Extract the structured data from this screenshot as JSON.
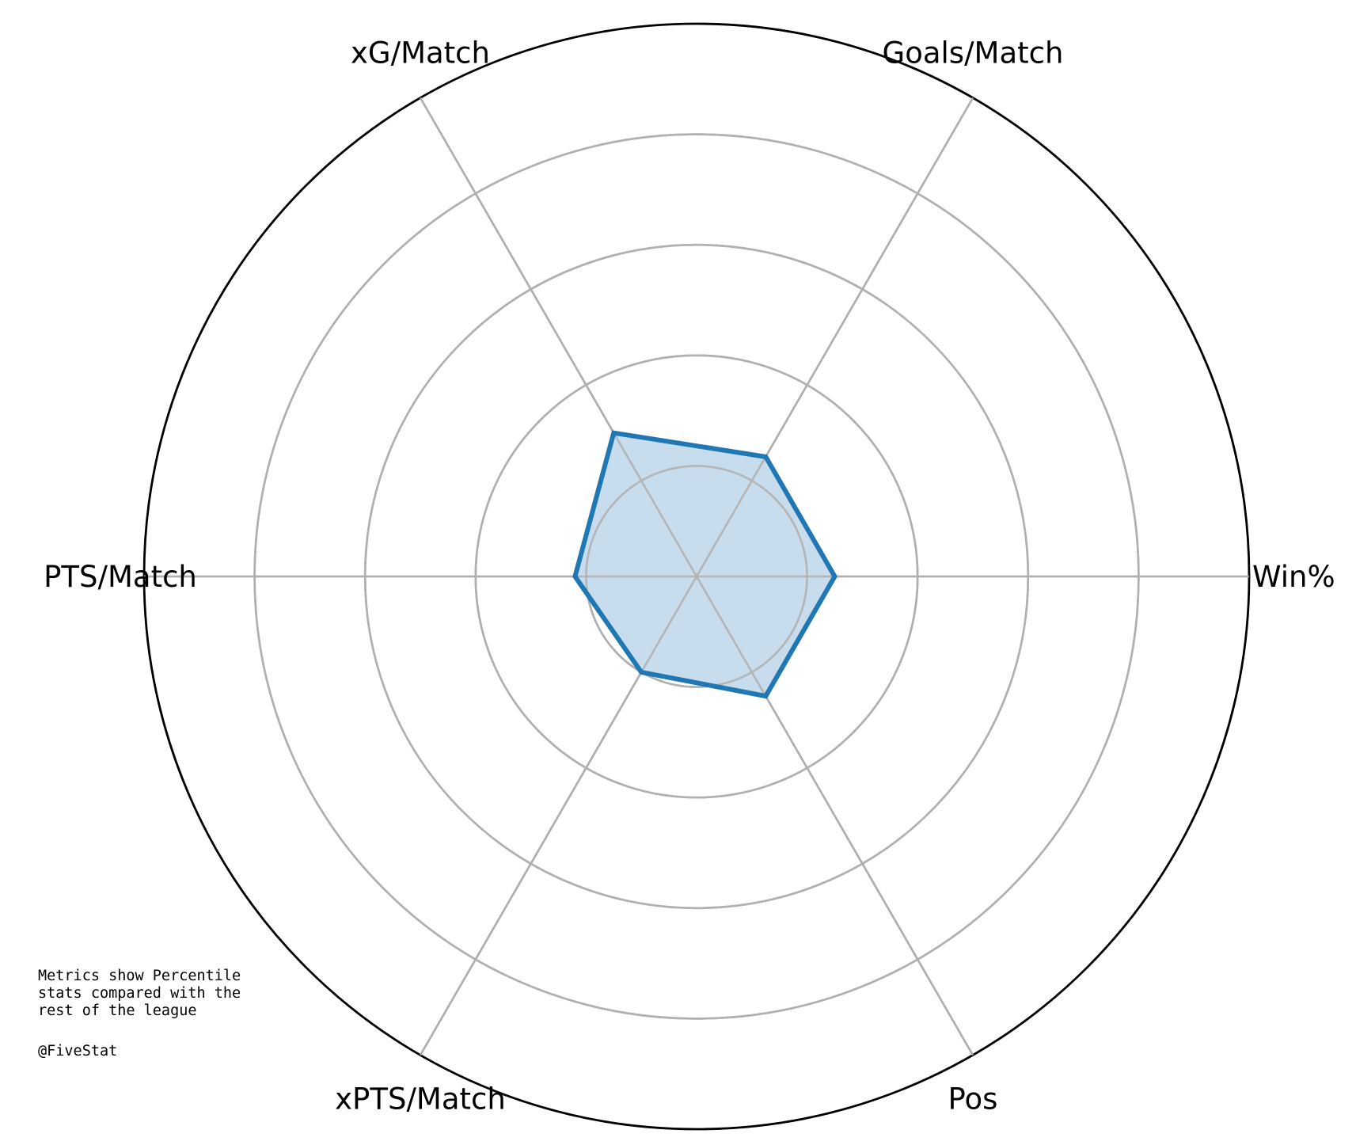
{
  "chart_data": {
    "type": "radar",
    "title": "",
    "axes": [
      "Win%",
      "Goals/Match",
      "xG/Match",
      "PTS/Match",
      "xPTS/Match",
      "Pos"
    ],
    "series": [
      {
        "values": [
          25,
          25,
          30,
          22,
          20,
          25
        ],
        "color": "#1f77b4",
        "fill": "#c7dcec"
      }
    ],
    "rlim": [
      0,
      100
    ],
    "rings": [
      20,
      40,
      60,
      80,
      100
    ],
    "grid": true,
    "colors": {
      "grid": "#b0b0b0",
      "frame": "#000000"
    }
  },
  "notes": {
    "lines": [
      "Metrics show Percentile",
      "stats compared with the",
      "rest of the league"
    ],
    "credit": "@FiveStat"
  }
}
